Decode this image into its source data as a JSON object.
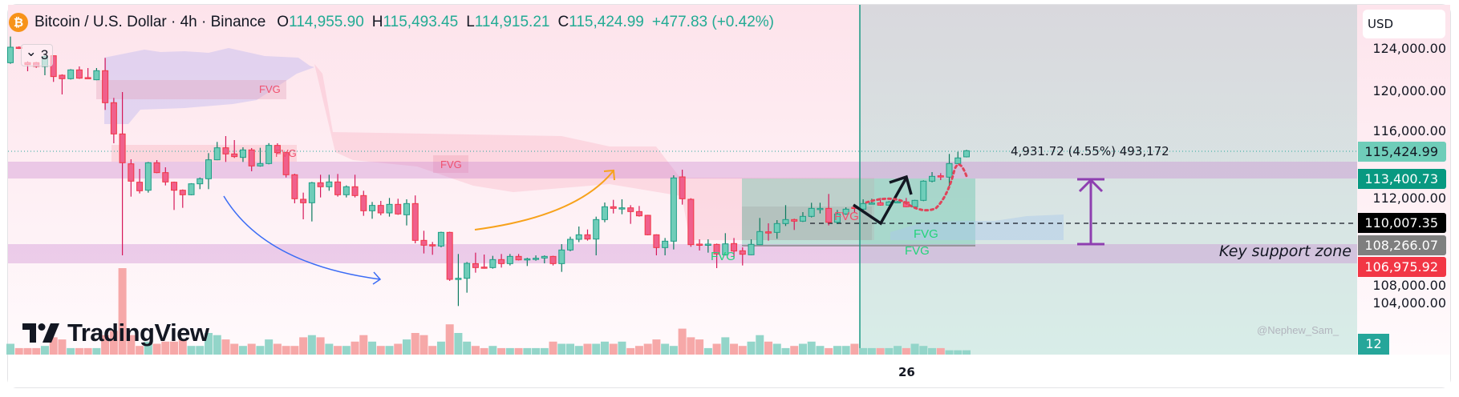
{
  "header": {
    "symbol_title": "Bitcoin / U.S. Dollar · 4h · Binance",
    "open_label": "O",
    "open": "114,955.90",
    "high_label": "H",
    "high": "115,493.45",
    "low_label": "L",
    "low": "114,915.21",
    "close_label": "C",
    "close": "115,424.99",
    "change": "+477.83 (+0.42%)",
    "icon": "bitcoin-icon",
    "icon_glyph": "₿"
  },
  "legend_toggle": {
    "chevron": "⌄",
    "count": "3"
  },
  "price_axis": {
    "currency": "USD",
    "ticks": [
      "124,000.00",
      "120,000.00",
      "116,000.00",
      "112,000.00",
      "108,000.00",
      "104,000.00"
    ],
    "labels": [
      {
        "text": "115,424.99",
        "color": "#6fcdb9",
        "text_color": "#131722"
      },
      {
        "text": "113,400.73",
        "color": "#089981",
        "text_color": "#ffffff"
      },
      {
        "text": "110,007.35",
        "color": "#000000",
        "text_color": "#ffffff"
      },
      {
        "text": "108,266.07",
        "color": "#7f7f7f",
        "text_color": "#ffffff"
      },
      {
        "text": "106,975.92",
        "color": "#f23645",
        "text_color": "#ffffff"
      }
    ],
    "volume_label": "12"
  },
  "time_axis": {
    "label": "26"
  },
  "annotations": {
    "measure": "4,931.72 (4.55%) 493,172",
    "support_zone": "Key support zone",
    "fvg_label": "FVG",
    "watermark": "@Nephew_Sam_"
  },
  "logo": {
    "text": "TradingView"
  },
  "colors": {
    "up": "#6fcdb9",
    "up_border": "#1e9e86",
    "down": "#f0608c",
    "down_border": "#f23645",
    "accent": "#22ab94"
  },
  "chart_data": {
    "type": "candlestick",
    "title": "Bitcoin / U.S. Dollar · 4h · Binance",
    "ylim": [
      102000,
      126000
    ],
    "y_ticks": [
      104000,
      108000,
      112000,
      116000,
      120000,
      124000
    ],
    "x_tick_labels": [
      "26"
    ],
    "grid": false,
    "fields": [
      "open",
      "high",
      "low",
      "close"
    ],
    "candles": [
      [
        122195,
        124206,
        122110,
        123385
      ],
      [
        123385,
        123450,
        123250,
        123300
      ],
      [
        122200,
        122300,
        121540,
        122050
      ],
      [
        122195,
        122250,
        121800,
        121908
      ],
      [
        121908,
        122750,
        121230,
        122667
      ],
      [
        122729,
        122729,
        120719,
        121129
      ],
      [
        121231,
        121300,
        119754,
        120965
      ],
      [
        120965,
        121700,
        120900,
        121642
      ],
      [
        121642,
        121908,
        120950,
        121006
      ],
      [
        121050,
        121785,
        120950,
        121006
      ],
      [
        120883,
        121785,
        120850,
        121580
      ],
      [
        121580,
        122565,
        118565,
        119119
      ],
      [
        119119,
        119488,
        116000,
        116718
      ],
      [
        116718,
        119939,
        107385,
        114503
      ],
      [
        114421,
        114770,
        111898,
        113088
      ],
      [
        113006,
        114031,
        112144,
        112349
      ],
      [
        112390,
        114565,
        112205,
        114503
      ],
      [
        114503,
        114708,
        113700,
        113744
      ],
      [
        113744,
        114154,
        112760,
        113026
      ],
      [
        113006,
        113050,
        110872,
        112390
      ],
      [
        112390,
        112450,
        111036,
        112042
      ],
      [
        112042,
        112930,
        112000,
        112883
      ],
      [
        112883,
        113370,
        112473,
        113273
      ],
      [
        113273,
        115242,
        112473,
        114729
      ],
      [
        114729,
        116103,
        114700,
        115652
      ],
      [
        115652,
        116554,
        114565,
        115180
      ],
      [
        115180,
        116247,
        114870,
        114975
      ],
      [
        114913,
        115693,
        114565,
        115488
      ],
      [
        115488,
        115632,
        113846,
        114257
      ],
      [
        114257,
        115652,
        114200,
        114442
      ],
      [
        114442,
        116010,
        114380,
        115836
      ],
      [
        115836,
        116000,
        115200,
        115283
      ],
      [
        115283,
        115350,
        113370,
        113580
      ],
      [
        113580,
        113660,
        111385,
        111734
      ],
      [
        111693,
        112206,
        110154,
        111426
      ],
      [
        111426,
        113030,
        109990,
        112965
      ],
      [
        112965,
        113580,
        111836,
        112657
      ],
      [
        112657,
        113580,
        112350,
        113026
      ],
      [
        113026,
        113641,
        111898,
        112042
      ],
      [
        112042,
        112760,
        111836,
        112657
      ],
      [
        112657,
        113580,
        111836,
        111980
      ],
      [
        111980,
        112349,
        110421,
        110811
      ],
      [
        110811,
        111488,
        110195,
        111221
      ],
      [
        111221,
        111570,
        110462,
        110647
      ],
      [
        110647,
        111795,
        110360,
        111303
      ],
      [
        111303,
        111734,
        110500,
        110565
      ],
      [
        110503,
        111693,
        109683,
        111364
      ],
      [
        111364,
        111990,
        108308,
        108534
      ],
      [
        108534,
        109272,
        107529,
        108165
      ],
      [
        108200,
        108411,
        107426,
        108165
      ],
      [
        108103,
        109200,
        108000,
        109149
      ],
      [
        109149,
        109200,
        105420,
        105538
      ],
      [
        105538,
        107487,
        103487,
        105620
      ],
      [
        105620,
        106872,
        104513,
        106769
      ],
      [
        106748,
        107590,
        106051,
        106441
      ],
      [
        106480,
        107446,
        106360,
        106441
      ],
      [
        106441,
        107344,
        106360,
        107056
      ],
      [
        107056,
        107487,
        106441,
        106748
      ],
      [
        106748,
        107487,
        106605,
        107302
      ],
      [
        107302,
        107487,
        106990,
        107036
      ],
      [
        107100,
        107200,
        106564,
        107118
      ],
      [
        107140,
        107380,
        106970,
        107159
      ],
      [
        107179,
        107380,
        106769,
        107302
      ],
      [
        107302,
        107350,
        106605,
        106748
      ],
      [
        106748,
        108246,
        106113,
        107795
      ],
      [
        107795,
        108820,
        107700,
        108615
      ],
      [
        108615,
        109600,
        108400,
        108964
      ],
      [
        108964,
        109374,
        108513,
        108636
      ],
      [
        108636,
        110359,
        107385,
        110133
      ],
      [
        110133,
        111446,
        109928,
        111118
      ],
      [
        111118,
        111651,
        110605,
        110995
      ],
      [
        110995,
        111692,
        110543,
        111036
      ],
      [
        111036,
        111241,
        109805,
        110748
      ],
      [
        110748,
        111180,
        110360,
        110420
      ],
      [
        110461,
        110500,
        108923,
        108964
      ],
      [
        108964,
        109000,
        107385,
        107979
      ],
      [
        107979,
        108718,
        107385,
        108472
      ],
      [
        108472,
        113538,
        107836,
        113333
      ],
      [
        113415,
        113969,
        111282,
        111733
      ],
      [
        111692,
        111774,
        108041,
        108205
      ],
      [
        108246,
        108615,
        107754,
        108205
      ],
      [
        108205,
        108615,
        107590,
        108246
      ],
      [
        108226,
        108287,
        106400,
        107487
      ],
      [
        107425,
        109087,
        107380,
        108267
      ],
      [
        108288,
        108718,
        107180,
        107713
      ],
      [
        107734,
        108000,
        106605,
        107467
      ],
      [
        107426,
        108616,
        107400,
        108226
      ],
      [
        108206,
        110257,
        108180,
        109211
      ],
      [
        109190,
        109847,
        108513,
        109149
      ],
      [
        109149,
        110093,
        108657,
        109826
      ],
      [
        109826,
        111242,
        109640,
        110134
      ],
      [
        110134,
        110200,
        109334,
        110011
      ],
      [
        110011,
        110708,
        109950,
        110380
      ],
      [
        110380,
        111426,
        110298,
        110995
      ],
      [
        110975,
        111426,
        110605,
        110995
      ],
      [
        110995,
        112103,
        109683,
        109929
      ],
      [
        109929,
        110872,
        109785,
        110565
      ],
      [
        110565,
        111077,
        110500,
        110934
      ],
      [
        111077,
        111324,
        110667,
        111036
      ],
      [
        110934,
        111693,
        110667,
        111365
      ],
      [
        111344,
        111734,
        111324,
        111406
      ],
      [
        111426,
        111796,
        111200,
        111242
      ],
      [
        111242,
        111550,
        111200,
        111488
      ],
      [
        111488,
        111570,
        111426,
        111508
      ],
      [
        111488,
        111796,
        111080,
        111119
      ],
      [
        111119,
        111650,
        111080,
        111611
      ],
      [
        111611,
        113150,
        111550,
        113088
      ],
      [
        113088,
        113785,
        113000,
        113457
      ],
      [
        113500,
        113703,
        113170,
        113457
      ],
      [
        113395,
        115180,
        112719,
        114442
      ],
      [
        114442,
        115344,
        114400,
        114873
      ],
      [
        114955.9,
        115493.45,
        114915.21,
        115424.99
      ]
    ],
    "volume": [
      5,
      3,
      3,
      3,
      4,
      8,
      7,
      3,
      3,
      3,
      3,
      9,
      11,
      40,
      9,
      4,
      6,
      5,
      6,
      6,
      7,
      4,
      4,
      10,
      9,
      7,
      5,
      4,
      5,
      4,
      7,
      5,
      4,
      4,
      8,
      9,
      8,
      5,
      4,
      4,
      6,
      9,
      6,
      4,
      4,
      5,
      7,
      10,
      9,
      4,
      6,
      14,
      10,
      6,
      4,
      3,
      4,
      3,
      3,
      3,
      3,
      3,
      3,
      6,
      5,
      5,
      4,
      5,
      5,
      6,
      5,
      6,
      3,
      4,
      5,
      7,
      5,
      4,
      12,
      8,
      7,
      3,
      5,
      8,
      5,
      4,
      6,
      9,
      6,
      5,
      3,
      4,
      5,
      6,
      4,
      3,
      4,
      4,
      5,
      3,
      3,
      3,
      3,
      4,
      3,
      5,
      4,
      3,
      3,
      2,
      2,
      2
    ],
    "horizontal_levels": {
      "dashed_line": 110007.35,
      "last_price": 115424.99
    }
  }
}
